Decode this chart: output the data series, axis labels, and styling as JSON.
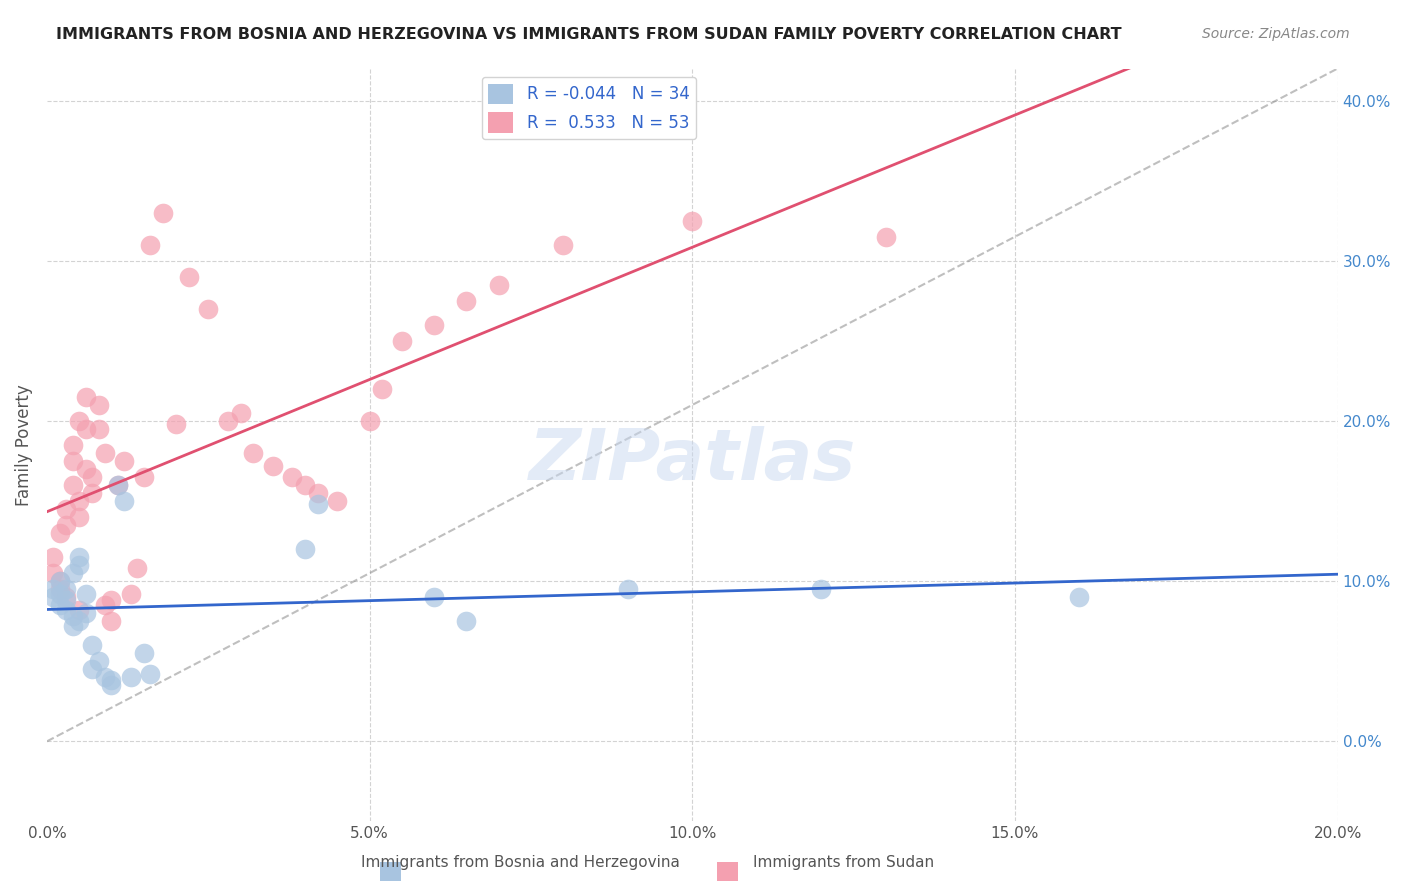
{
  "title": "IMMIGRANTS FROM BOSNIA AND HERZEGOVINA VS IMMIGRANTS FROM SUDAN FAMILY POVERTY CORRELATION CHART",
  "source": "Source: ZipAtlas.com",
  "xlabel": "",
  "ylabel": "Family Poverty",
  "legend_label_1": "Immigrants from Bosnia and Herzegovina",
  "legend_label_2": "Immigrants from Sudan",
  "r1": -0.044,
  "n1": 34,
  "r2": 0.533,
  "n2": 53,
  "color1": "#a8c4e0",
  "color2": "#f4a0b0",
  "line_color1": "#3366cc",
  "line_color2": "#e05070",
  "xlim": [
    0.0,
    0.2
  ],
  "ylim": [
    -0.05,
    0.42
  ],
  "x_ticks": [
    0.0,
    0.05,
    0.1,
    0.15,
    0.2
  ],
  "y_ticks_right": [
    0.0,
    0.1,
    0.2,
    0.3,
    0.4
  ],
  "watermark": "ZIPatlas",
  "bosnia_x": [
    0.001,
    0.001,
    0.002,
    0.002,
    0.002,
    0.003,
    0.003,
    0.003,
    0.004,
    0.004,
    0.004,
    0.005,
    0.005,
    0.005,
    0.006,
    0.006,
    0.007,
    0.007,
    0.008,
    0.009,
    0.01,
    0.01,
    0.011,
    0.012,
    0.013,
    0.015,
    0.016,
    0.04,
    0.042,
    0.06,
    0.065,
    0.09,
    0.12,
    0.16
  ],
  "bosnia_y": [
    0.095,
    0.09,
    0.085,
    0.092,
    0.1,
    0.095,
    0.088,
    0.082,
    0.078,
    0.072,
    0.105,
    0.115,
    0.11,
    0.075,
    0.08,
    0.092,
    0.06,
    0.045,
    0.05,
    0.04,
    0.035,
    0.038,
    0.16,
    0.15,
    0.04,
    0.055,
    0.042,
    0.12,
    0.148,
    0.09,
    0.075,
    0.095,
    0.095,
    0.09
  ],
  "sudan_x": [
    0.001,
    0.001,
    0.002,
    0.002,
    0.002,
    0.003,
    0.003,
    0.003,
    0.004,
    0.004,
    0.004,
    0.005,
    0.005,
    0.005,
    0.005,
    0.006,
    0.006,
    0.006,
    0.007,
    0.007,
    0.008,
    0.008,
    0.009,
    0.009,
    0.01,
    0.01,
    0.011,
    0.012,
    0.013,
    0.014,
    0.015,
    0.016,
    0.018,
    0.02,
    0.022,
    0.025,
    0.028,
    0.03,
    0.032,
    0.035,
    0.038,
    0.04,
    0.042,
    0.045,
    0.05,
    0.052,
    0.055,
    0.06,
    0.065,
    0.07,
    0.08,
    0.1,
    0.13
  ],
  "sudan_y": [
    0.115,
    0.105,
    0.13,
    0.1,
    0.095,
    0.145,
    0.135,
    0.09,
    0.185,
    0.175,
    0.16,
    0.2,
    0.15,
    0.14,
    0.082,
    0.215,
    0.195,
    0.17,
    0.165,
    0.155,
    0.21,
    0.195,
    0.18,
    0.085,
    0.088,
    0.075,
    0.16,
    0.175,
    0.092,
    0.108,
    0.165,
    0.31,
    0.33,
    0.198,
    0.29,
    0.27,
    0.2,
    0.205,
    0.18,
    0.172,
    0.165,
    0.16,
    0.155,
    0.15,
    0.2,
    0.22,
    0.25,
    0.26,
    0.275,
    0.285,
    0.31,
    0.325,
    0.315
  ]
}
